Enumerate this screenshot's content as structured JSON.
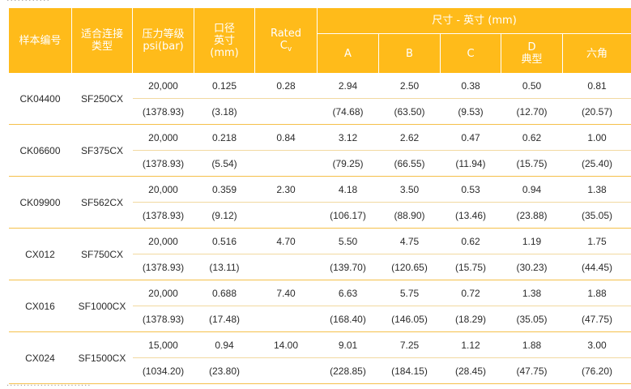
{
  "header": {
    "col_model": "样本编号",
    "col_connection": "适合连接类型",
    "col_pressure_line1": "压力等级",
    "col_pressure_line2": "psi(bar)",
    "col_orifice_line1": "口径",
    "col_orifice_line2": "英寸",
    "col_orifice_line3": "(mm)",
    "col_cv_line1": "Rated",
    "col_cv_main": "C",
    "col_cv_sub": "v",
    "col_dimensions": "尺寸 - 英寸 (mm)",
    "dim_a": "A",
    "dim_b": "B",
    "dim_c": "C",
    "dim_d_line1": "D",
    "dim_d_line2": "典型",
    "dim_hex": "六角"
  },
  "rows": [
    {
      "model": "CK04400",
      "connection": "SF250CX",
      "pressure_psi": "20,000",
      "pressure_bar": "(1378.93)",
      "orifice_in": "0.125",
      "orifice_mm": "(3.18)",
      "cv": "0.28",
      "a_in": "2.94",
      "a_mm": "(74.68)",
      "b_in": "2.50",
      "b_mm": "(63.50)",
      "c_in": "0.38",
      "c_mm": "(9.53)",
      "d_in": "0.50",
      "d_mm": "(12.70)",
      "hex_in": "0.81",
      "hex_mm": "(20.57)"
    },
    {
      "model": "CK06600",
      "connection": "SF375CX",
      "pressure_psi": "20,000",
      "pressure_bar": "(1378.93)",
      "orifice_in": "0.218",
      "orifice_mm": "(5.54)",
      "cv": "0.84",
      "a_in": "3.12",
      "a_mm": "(79.25)",
      "b_in": "2.62",
      "b_mm": "(66.55)",
      "c_in": "0.47",
      "c_mm": "(11.94)",
      "d_in": "0.62",
      "d_mm": "(15.75)",
      "hex_in": "1.00",
      "hex_mm": "(25.40)"
    },
    {
      "model": "CK09900",
      "connection": "SF562CX",
      "pressure_psi": "20,000",
      "pressure_bar": "(1378.93)",
      "orifice_in": "0.359",
      "orifice_mm": "(9.12)",
      "cv": "2.30",
      "a_in": "4.18",
      "a_mm": "(106.17)",
      "b_in": "3.50",
      "b_mm": "(88.90)",
      "c_in": "0.53",
      "c_mm": "(13.46)",
      "d_in": "0.94",
      "d_mm": "(23.88)",
      "hex_in": "1.38",
      "hex_mm": "(35.05)"
    },
    {
      "model": "CX012",
      "connection": "SF750CX",
      "pressure_psi": "20,000",
      "pressure_bar": "(1378.93)",
      "orifice_in": "0.516",
      "orifice_mm": "(13.11)",
      "cv": "4.70",
      "a_in": "5.50",
      "a_mm": "(139.70)",
      "b_in": "4.75",
      "b_mm": "(120.65)",
      "c_in": "0.62",
      "c_mm": "(15.75)",
      "d_in": "1.19",
      "d_mm": "(30.23)",
      "hex_in": "1.75",
      "hex_mm": "(44.45)"
    },
    {
      "model": "CX016",
      "connection": "SF1000CX",
      "pressure_psi": "20,000",
      "pressure_bar": "(1378.93)",
      "orifice_in": "0.688",
      "orifice_mm": "(17.48)",
      "cv": "7.40",
      "a_in": "6.63",
      "a_mm": "(168.40)",
      "b_in": "5.75",
      "b_mm": "(146.05)",
      "c_in": "0.72",
      "c_mm": "(18.29)",
      "d_in": "1.38",
      "d_mm": "(35.05)",
      "hex_in": "1.88",
      "hex_mm": "(47.75)"
    },
    {
      "model": "CX024",
      "connection": "SF1500CX",
      "pressure_psi": "15,000",
      "pressure_bar": "(1034.20)",
      "orifice_in": "0.94",
      "orifice_mm": "(23.80)",
      "cv": "14.00",
      "a_in": "9.01",
      "a_mm": "(228.85)",
      "b_in": "7.25",
      "b_mm": "(184.15)",
      "c_in": "1.12",
      "c_mm": "(28.45)",
      "d_in": "1.88",
      "d_mm": "(47.75)",
      "hex_in": "3.00",
      "hex_mm": "(76.20)"
    }
  ]
}
